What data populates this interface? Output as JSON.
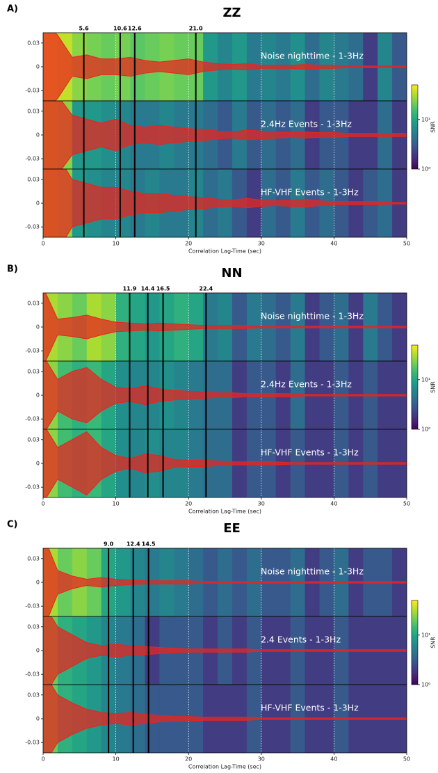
{
  "chart_data": [
    {
      "type": "waveform",
      "panel_label": "A)",
      "title": "ZZ",
      "xlabel": "Correlation Lag-Time (sec)",
      "xlim": [
        0,
        50
      ],
      "xticks": [
        0,
        10,
        20,
        30,
        40,
        50
      ],
      "ylim": [
        -0.043,
        0.043
      ],
      "yticks": [
        0.03,
        0,
        -0.03
      ],
      "grid": true,
      "wave_color": "#e8251f",
      "marker_color": "#000000",
      "markers": [
        5.6,
        10.6,
        12.6,
        {
          "value": 21,
          "label": "21.0"
        }
      ],
      "colorbar": {
        "label": "SNR",
        "lim": [
          1,
          50
        ],
        "log": true,
        "colormap": "viridis",
        "ticks": [
          {
            "value": 1,
            "label": "10⁰"
          },
          {
            "value": 10,
            "label": "10¹"
          }
        ]
      },
      "bins": [
        0,
        2,
        4,
        6,
        8,
        10,
        12,
        14,
        16,
        18,
        20,
        22,
        24,
        26,
        28,
        30,
        32,
        34,
        36,
        38,
        40,
        42,
        44,
        46,
        48,
        50
      ],
      "series": [
        {
          "name": "Noise nighttime  -  1-3Hz",
          "snr": [
            40,
            35,
            25,
            22,
            20,
            22,
            18,
            20,
            22,
            20,
            20,
            8,
            6,
            8,
            5,
            6,
            5,
            7,
            4,
            6,
            5,
            4,
            2,
            6,
            3
          ],
          "envelope": [
            0.06,
            0.04,
            0.012,
            0.015,
            0.01,
            0.01,
            0.012,
            0.008,
            0.006,
            0.008,
            0.01,
            0.006,
            0.004,
            0.003,
            0.004,
            0.002,
            0.002,
            0.002,
            0.003,
            0.002,
            0.002,
            0.001,
            0.001,
            0.001,
            0.001,
            0.001
          ]
        },
        {
          "name": "2.4Hz Events  -  1-3Hz",
          "snr": [
            30,
            25,
            8,
            8,
            7,
            6,
            5,
            5,
            6,
            5,
            5,
            4,
            3,
            5,
            3,
            4,
            3,
            4,
            2,
            3,
            3,
            2,
            2,
            4,
            2
          ],
          "envelope": [
            0.06,
            0.05,
            0.025,
            0.02,
            0.015,
            0.02,
            0.012,
            0.01,
            0.012,
            0.01,
            0.008,
            0.007,
            0.005,
            0.004,
            0.006,
            0.005,
            0.004,
            0.003,
            0.004,
            0.003,
            0.003,
            0.002,
            0.002,
            0.002,
            0.002,
            0.002
          ]
        },
        {
          "name": "HF-VHF Events  -  1-3Hz",
          "snr": [
            30,
            25,
            8,
            7,
            6,
            6,
            5,
            6,
            5,
            5,
            6,
            4,
            5,
            3,
            2,
            4,
            3,
            5,
            3,
            4,
            3,
            2,
            3,
            4,
            2
          ],
          "envelope": [
            0.06,
            0.06,
            0.03,
            0.025,
            0.02,
            0.02,
            0.015,
            0.012,
            0.012,
            0.01,
            0.008,
            0.007,
            0.005,
            0.004,
            0.006,
            0.004,
            0.003,
            0.004,
            0.005,
            0.003,
            0.002,
            0.002,
            0.002,
            0.002,
            0.001,
            0.001
          ]
        }
      ]
    },
    {
      "type": "waveform",
      "panel_label": "B)",
      "title": "NN",
      "xlabel": "Correlation Lag-Time (sec)",
      "xlim": [
        0,
        50
      ],
      "xticks": [
        0,
        10,
        20,
        30,
        40,
        50
      ],
      "ylim": [
        -0.043,
        0.043
      ],
      "yticks": [
        0.03,
        0,
        -0.03
      ],
      "grid": true,
      "wave_color": "#e8251f",
      "marker_color": "#000000",
      "markers": [
        11.9,
        14.4,
        16.5,
        22.4
      ],
      "colorbar": {
        "label": "SNR",
        "lim": [
          1,
          50
        ],
        "log": true,
        "colormap": "viridis",
        "ticks": [
          {
            "value": 1,
            "label": "10⁰"
          },
          {
            "value": 10,
            "label": "10¹"
          }
        ]
      },
      "bins": [
        0,
        2,
        4,
        6,
        8,
        10,
        12,
        14,
        16,
        18,
        20,
        22,
        24,
        26,
        28,
        30,
        32,
        34,
        36,
        38,
        40,
        42,
        44,
        46,
        48,
        50
      ],
      "series": [
        {
          "name": "Noise nighttime  -  1-3Hz",
          "snr": [
            30,
            25,
            20,
            30,
            25,
            12,
            10,
            8,
            10,
            12,
            10,
            5,
            6,
            3,
            5,
            4,
            3,
            5,
            2,
            3,
            4,
            2,
            5,
            3,
            2
          ],
          "envelope": [
            0.05,
            0.01,
            0.012,
            0.015,
            0.01,
            0.006,
            0.005,
            0.004,
            0.005,
            0.004,
            0.003,
            0.002,
            0.002,
            0.002,
            0.002,
            0.001,
            0.001,
            0.001,
            0.001,
            0.001,
            0.001,
            0.001,
            0.001,
            0.001,
            0.001,
            0.001
          ]
        },
        {
          "name": "2.4Hz Events  -  1-3Hz",
          "snr": [
            25,
            15,
            12,
            14,
            10,
            7,
            6,
            6,
            7,
            6,
            5,
            4,
            4,
            2,
            3,
            3,
            2,
            4,
            2,
            2,
            3,
            2,
            3,
            2,
            2
          ],
          "envelope": [
            0.05,
            0.02,
            0.03,
            0.035,
            0.02,
            0.01,
            0.008,
            0.012,
            0.008,
            0.006,
            0.005,
            0.004,
            0.003,
            0.003,
            0.002,
            0.002,
            0.002,
            0.002,
            0.001,
            0.001,
            0.001,
            0.001,
            0.001,
            0.001,
            0.001,
            0.001
          ]
        },
        {
          "name": "HF-VHF Events  -  1-3Hz",
          "snr": [
            25,
            15,
            12,
            14,
            10,
            7,
            6,
            7,
            6,
            6,
            5,
            4,
            4,
            2,
            3,
            3,
            2,
            3,
            2,
            2,
            3,
            2,
            3,
            2,
            2
          ],
          "envelope": [
            0.05,
            0.02,
            0.03,
            0.04,
            0.02,
            0.01,
            0.006,
            0.012,
            0.01,
            0.005,
            0.004,
            0.004,
            0.003,
            0.002,
            0.002,
            0.002,
            0.002,
            0.001,
            0.001,
            0.001,
            0.001,
            0.001,
            0.001,
            0.001,
            0.001,
            0.001
          ]
        }
      ]
    },
    {
      "type": "waveform",
      "panel_label": "C)",
      "title": "EE",
      "xlabel": "Correlation Lag-Time (sec)",
      "xlim": [
        0,
        50
      ],
      "xticks": [
        0,
        10,
        20,
        30,
        40,
        50
      ],
      "ylim": [
        -0.043,
        0.043
      ],
      "yticks": [
        0.03,
        0,
        -0.03
      ],
      "grid": true,
      "wave_color": "#e8251f",
      "marker_color": "#000000",
      "markers": [
        {
          "value": 9,
          "label": "9.0"
        },
        12.4,
        14.5
      ],
      "colorbar": {
        "label": "SNR",
        "lim": [
          1,
          50
        ],
        "log": true,
        "colormap": "viridis",
        "ticks": [
          {
            "value": 1,
            "label": "10⁰"
          },
          {
            "value": 10,
            "label": "10¹"
          }
        ]
      },
      "bins": [
        0,
        2,
        4,
        6,
        8,
        10,
        12,
        14,
        16,
        18,
        20,
        22,
        24,
        26,
        28,
        30,
        32,
        34,
        36,
        38,
        40,
        42,
        44,
        46,
        48,
        50
      ],
      "series": [
        {
          "name": "Noise nighttime  -  1-3Hz",
          "snr": [
            30,
            20,
            25,
            20,
            10,
            8,
            6,
            5,
            6,
            5,
            4,
            3,
            4,
            3,
            4,
            3,
            3,
            4,
            2,
            3,
            4,
            2,
            3,
            3,
            2
          ],
          "envelope": [
            0.06,
            0.015,
            0.008,
            0.004,
            0.006,
            0.004,
            0.003,
            0.002,
            0.002,
            0.002,
            0.002,
            0.001,
            0.001,
            0.001,
            0.001,
            0.001,
            0.001,
            0.001,
            0.001,
            0.001,
            0.001,
            0.001,
            0.001,
            0.001,
            0.001,
            0.001
          ]
        },
        {
          "name": "2.4 Events  -  1-3Hz",
          "snr": [
            20,
            12,
            10,
            8,
            6,
            5,
            4,
            2,
            3,
            3,
            3,
            2,
            3,
            2,
            3,
            2,
            2,
            3,
            2,
            2,
            3,
            2,
            2,
            2,
            2
          ],
          "envelope": [
            0.06,
            0.03,
            0.02,
            0.01,
            0.006,
            0.008,
            0.006,
            0.005,
            0.004,
            0.003,
            0.002,
            0.002,
            0.002,
            0.002,
            0.002,
            0.001,
            0.001,
            0.001,
            0.001,
            0.001,
            0.001,
            0.001,
            0.001,
            0.001,
            0.001,
            0.001
          ]
        },
        {
          "name": "HF-VHF Events  -  1-3Hz",
          "snr": [
            20,
            12,
            10,
            8,
            6,
            5,
            4,
            3,
            3,
            3,
            3,
            2,
            2,
            2,
            3,
            2,
            2,
            3,
            2,
            2,
            3,
            2,
            2,
            2,
            2
          ],
          "envelope": [
            0.06,
            0.03,
            0.02,
            0.012,
            0.008,
            0.006,
            0.008,
            0.006,
            0.004,
            0.003,
            0.003,
            0.002,
            0.002,
            0.002,
            0.002,
            0.001,
            0.001,
            0.001,
            0.001,
            0.001,
            0.001,
            0.001,
            0.001,
            0.001,
            0.001,
            0.001
          ]
        }
      ]
    }
  ]
}
